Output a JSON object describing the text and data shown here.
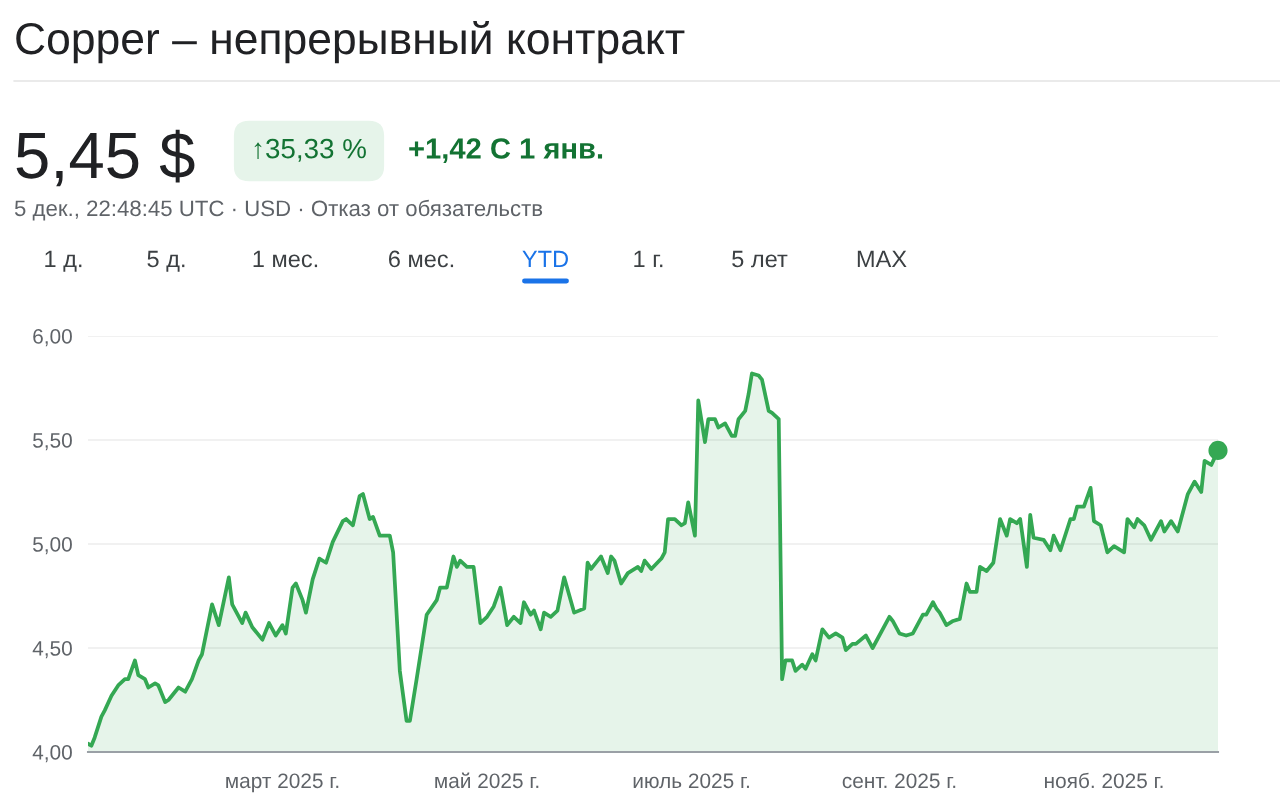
{
  "chart_data": {
    "type": "area",
    "title": "Copper – непрерывный контракт",
    "subtitle": "5 дек., 22:48:45 UTC · USD · Отказ от обязательств",
    "annotations": [
      "5,45 $",
      "↑35,33 %",
      "+1,42 С 1 янв.",
      "1 д.",
      "5 д.",
      "1 мес.",
      "6 мес.",
      "YTD",
      "1 г.",
      "5 лет",
      "MAX"
    ],
    "x": [
      "2025-01-02",
      "2025-01-03",
      "2025-01-04",
      "2025-01-06",
      "2025-01-07",
      "2025-01-09",
      "2025-01-11",
      "2025-01-13",
      "2025-01-14",
      "2025-01-16",
      "2025-01-17",
      "2025-01-19",
      "2025-01-20",
      "2025-01-22",
      "2025-01-23",
      "2025-01-25",
      "2025-01-26",
      "2025-01-29",
      "2025-01-31",
      "2025-02-02",
      "2025-02-04",
      "2025-02-05",
      "2025-02-08",
      "2025-02-10",
      "2025-02-13",
      "2025-02-14",
      "2025-02-17",
      "2025-02-18",
      "2025-02-20",
      "2025-02-23",
      "2025-02-25",
      "2025-02-27",
      "2025-03-01",
      "2025-03-02",
      "2025-03-04",
      "2025-03-05",
      "2025-03-07",
      "2025-03-08",
      "2025-03-10",
      "2025-03-12",
      "2025-03-14",
      "2025-03-16",
      "2025-03-19",
      "2025-03-20",
      "2025-03-22",
      "2025-03-24",
      "2025-03-25",
      "2025-03-27",
      "2025-03-28",
      "2025-03-30",
      "2025-04-02",
      "2025-04-03",
      "2025-04-05",
      "2025-04-07",
      "2025-04-08",
      "2025-04-10",
      "2025-04-13",
      "2025-04-16",
      "2025-04-17",
      "2025-04-19",
      "2025-04-21",
      "2025-04-22",
      "2025-04-23",
      "2025-04-25",
      "2025-04-27",
      "2025-04-29",
      "2025-05-01",
      "2025-05-03",
      "2025-05-05",
      "2025-05-07",
      "2025-05-09",
      "2025-05-11",
      "2025-05-12",
      "2025-05-14",
      "2025-05-15",
      "2025-05-17",
      "2025-05-18",
      "2025-05-20",
      "2025-05-22",
      "2025-05-24",
      "2025-05-27",
      "2025-05-30",
      "2025-05-31",
      "2025-06-01",
      "2025-06-03",
      "2025-06-04",
      "2025-06-06",
      "2025-06-07",
      "2025-06-08",
      "2025-06-10",
      "2025-06-12",
      "2025-06-15",
      "2025-06-16",
      "2025-06-17",
      "2025-06-19",
      "2025-06-22",
      "2025-06-23",
      "2025-06-24",
      "2025-06-26",
      "2025-06-28",
      "2025-06-29",
      "2025-06-30",
      "2025-07-02",
      "2025-07-03",
      "2025-07-05",
      "2025-07-06",
      "2025-07-08",
      "2025-07-09",
      "2025-07-11",
      "2025-07-13",
      "2025-07-14",
      "2025-07-15",
      "2025-07-17",
      "2025-07-18",
      "2025-07-19",
      "2025-07-21",
      "2025-07-22",
      "2025-07-24",
      "2025-07-25",
      "2025-07-27",
      "2025-07-28",
      "2025-07-29",
      "2025-07-31",
      "2025-08-01",
      "2025-08-03",
      "2025-08-04",
      "2025-08-06",
      "2025-08-07",
      "2025-08-09",
      "2025-08-11",
      "2025-08-13",
      "2025-08-15",
      "2025-08-16",
      "2025-08-18",
      "2025-08-19",
      "2025-08-22",
      "2025-08-24",
      "2025-08-29",
      "2025-08-30",
      "2025-09-01",
      "2025-09-03",
      "2025-09-05",
      "2025-09-08",
      "2025-09-09",
      "2025-09-11",
      "2025-09-12",
      "2025-09-13",
      "2025-09-15",
      "2025-09-17",
      "2025-09-19",
      "2025-09-21",
      "2025-09-22",
      "2025-09-24",
      "2025-09-25",
      "2025-09-27",
      "2025-09-29",
      "2025-10-01",
      "2025-10-03",
      "2025-10-04",
      "2025-10-06",
      "2025-10-07",
      "2025-10-09",
      "2025-10-10",
      "2025-10-11",
      "2025-10-14",
      "2025-10-16",
      "2025-10-17",
      "2025-10-19",
      "2025-10-22",
      "2025-10-23",
      "2025-10-24",
      "2025-10-26",
      "2025-10-28",
      "2025-10-29",
      "2025-10-31",
      "2025-11-02",
      "2025-11-04",
      "2025-11-07",
      "2025-11-08",
      "2025-11-10",
      "2025-11-11",
      "2025-11-13",
      "2025-11-15",
      "2025-11-18",
      "2025-11-19",
      "2025-11-21",
      "2025-11-23",
      "2025-11-24",
      "2025-11-26",
      "2025-11-28",
      "2025-11-30",
      "2025-12-01",
      "2025-12-03",
      "2025-12-05"
    ],
    "series": [
      {
        "color": "#34a853",
        "values": [
          4.04,
          4.03,
          4.07,
          4.17,
          4.2,
          4.27,
          4.32,
          4.35,
          4.35,
          4.44,
          4.37,
          4.35,
          4.31,
          4.33,
          4.32,
          4.24,
          4.25,
          4.31,
          4.29,
          4.35,
          4.44,
          4.47,
          4.71,
          4.61,
          4.84,
          4.71,
          4.62,
          4.67,
          4.6,
          4.54,
          4.62,
          4.56,
          4.61,
          4.57,
          4.79,
          4.81,
          4.73,
          4.67,
          4.83,
          4.93,
          4.91,
          5.01,
          5.11,
          5.12,
          5.09,
          5.23,
          5.24,
          5.12,
          5.13,
          5.04,
          5.04,
          4.96,
          4.39,
          4.15,
          4.15,
          4.35,
          4.66,
          4.73,
          4.79,
          4.79,
          4.94,
          4.89,
          4.92,
          4.89,
          4.89,
          4.62,
          4.65,
          4.7,
          4.79,
          4.61,
          4.65,
          4.62,
          4.72,
          4.66,
          4.68,
          4.59,
          4.67,
          4.65,
          4.68,
          4.84,
          4.67,
          4.69,
          4.91,
          4.88,
          4.92,
          4.94,
          4.86,
          4.94,
          4.92,
          4.81,
          4.86,
          4.89,
          4.87,
          4.92,
          4.88,
          4.93,
          4.96,
          5.12,
          5.12,
          5.09,
          5.1,
          5.2,
          5.04,
          5.69,
          5.49,
          5.6,
          5.6,
          5.56,
          5.58,
          5.52,
          5.52,
          5.6,
          5.64,
          5.72,
          5.82,
          5.81,
          5.79,
          5.64,
          5.63,
          5.6,
          4.35,
          4.44,
          4.44,
          4.39,
          4.42,
          4.4,
          4.47,
          4.44,
          4.59,
          4.55,
          4.57,
          4.55,
          4.49,
          4.52,
          4.52,
          4.56,
          4.5,
          4.65,
          4.63,
          4.57,
          4.56,
          4.57,
          4.66,
          4.66,
          4.72,
          4.69,
          4.67,
          4.61,
          4.63,
          4.64,
          4.81,
          4.77,
          4.77,
          4.89,
          4.87,
          4.91,
          5.12,
          5.04,
          5.12,
          5.1,
          5.12,
          4.89,
          5.14,
          5.03,
          5.02,
          4.97,
          5.04,
          4.97,
          5.12,
          5.12,
          5.18,
          5.18,
          5.27,
          5.11,
          5.09,
          4.96,
          4.99,
          4.96,
          5.12,
          5.08,
          5.12,
          5.09,
          5.02,
          5.11,
          5.06,
          5.11,
          5.06,
          5.12,
          5.24,
          5.3,
          5.25,
          5.4,
          5.38,
          5.45
        ]
      },
      {
        "type": "scatter",
        "color": "#34a853",
        "marker": "circle",
        "x": [
          "2025-12-05"
        ],
        "values": [
          5.45
        ]
      }
    ],
    "xlim": [
      "2025-01-02",
      "2025-12-05"
    ],
    "xticks": [
      {
        "value": "2025-03-01",
        "label": "март 2025 г."
      },
      {
        "value": "2025-05-01",
        "label": "май 2025 г."
      },
      {
        "value": "2025-07-01",
        "label": "июль 2025 г."
      },
      {
        "value": "2025-09-01",
        "label": "сент. 2025 г."
      },
      {
        "value": "2025-11-01",
        "label": "нояб. 2025 г."
      }
    ],
    "ylim": [
      4,
      6
    ],
    "yticks": [
      {
        "value": 4,
        "label": "4,00"
      },
      {
        "value": 4.5,
        "label": "4,50"
      },
      {
        "value": 5,
        "label": "5,00"
      },
      {
        "value": 5.5,
        "label": "5,50"
      },
      {
        "value": 6,
        "label": "6,00"
      }
    ],
    "grid": "y"
  }
}
